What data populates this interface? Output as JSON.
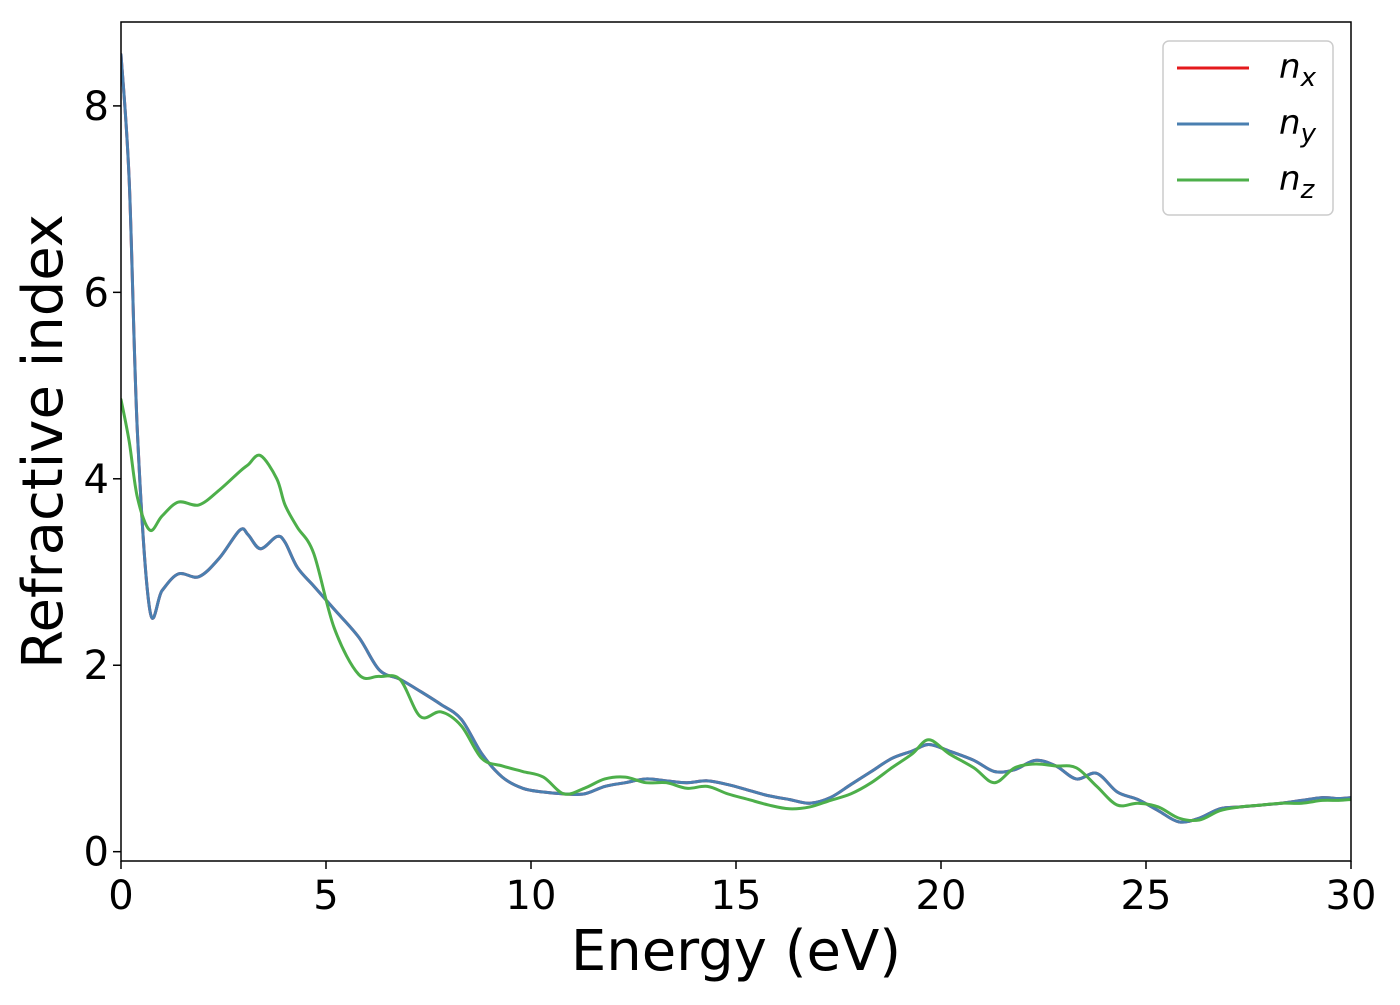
{
  "chart_data": {
    "type": "line",
    "title": "",
    "xlabel": "Energy (eV)",
    "ylabel": "Refractive index",
    "xlim": [
      0,
      30
    ],
    "ylim": [
      -0.1,
      8.9
    ],
    "xticks": [
      0,
      5,
      10,
      15,
      20,
      25,
      30
    ],
    "yticks": [
      0,
      2,
      4,
      6,
      8
    ],
    "xtick_labels": [
      "0",
      "5",
      "10",
      "15",
      "20",
      "25",
      "30"
    ],
    "ytick_labels": [
      "0",
      "2",
      "4",
      "6",
      "8"
    ],
    "grid": false,
    "legend_placement": "top-right",
    "series": [
      {
        "name": "n_x",
        "label_main": "n",
        "label_sub": "x",
        "color": "#e41a1c",
        "x": [
          0,
          0.2,
          0.4,
          0.7,
          1.0,
          1.4,
          1.9,
          2.4,
          2.9,
          3.1,
          3.4,
          3.8,
          4.0,
          4.3,
          4.7,
          5.2,
          5.8,
          6.3,
          6.8,
          7.3,
          7.8,
          8.3,
          8.8,
          9.3,
          9.8,
          10.3,
          10.8,
          11.3,
          11.8,
          12.3,
          12.8,
          13.3,
          13.8,
          14.3,
          14.8,
          15.3,
          15.8,
          16.3,
          16.8,
          17.3,
          17.8,
          18.3,
          18.8,
          19.3,
          19.7,
          20.2,
          20.8,
          21.3,
          21.8,
          22.3,
          22.8,
          23.3,
          23.8,
          24.3,
          24.8,
          25.3,
          25.8,
          26.3,
          26.8,
          27.3,
          27.8,
          28.3,
          28.8,
          29.3,
          29.7,
          30
        ],
        "y": [
          8.55,
          7.2,
          4.5,
          2.6,
          2.8,
          2.98,
          2.95,
          3.15,
          3.45,
          3.4,
          3.25,
          3.38,
          3.32,
          3.05,
          2.85,
          2.6,
          2.3,
          1.95,
          1.85,
          1.72,
          1.58,
          1.42,
          1.05,
          0.8,
          0.68,
          0.64,
          0.62,
          0.62,
          0.7,
          0.74,
          0.78,
          0.76,
          0.74,
          0.76,
          0.72,
          0.66,
          0.6,
          0.56,
          0.52,
          0.58,
          0.72,
          0.86,
          1.0,
          1.08,
          1.15,
          1.08,
          0.98,
          0.86,
          0.88,
          0.98,
          0.92,
          0.78,
          0.84,
          0.64,
          0.56,
          0.44,
          0.32,
          0.36,
          0.46,
          0.48,
          0.5,
          0.52,
          0.55,
          0.58,
          0.57,
          0.58
        ]
      },
      {
        "name": "n_y",
        "label_main": "n",
        "label_sub": "y",
        "color": "#4a7fb0",
        "x": [
          0,
          0.2,
          0.4,
          0.7,
          1.0,
          1.4,
          1.9,
          2.4,
          2.9,
          3.1,
          3.4,
          3.8,
          4.0,
          4.3,
          4.7,
          5.2,
          5.8,
          6.3,
          6.8,
          7.3,
          7.8,
          8.3,
          8.8,
          9.3,
          9.8,
          10.3,
          10.8,
          11.3,
          11.8,
          12.3,
          12.8,
          13.3,
          13.8,
          14.3,
          14.8,
          15.3,
          15.8,
          16.3,
          16.8,
          17.3,
          17.8,
          18.3,
          18.8,
          19.3,
          19.7,
          20.2,
          20.8,
          21.3,
          21.8,
          22.3,
          22.8,
          23.3,
          23.8,
          24.3,
          24.8,
          25.3,
          25.8,
          26.3,
          26.8,
          27.3,
          27.8,
          28.3,
          28.8,
          29.3,
          29.7,
          30
        ],
        "y": [
          8.55,
          7.2,
          4.5,
          2.6,
          2.8,
          2.98,
          2.95,
          3.15,
          3.45,
          3.4,
          3.25,
          3.38,
          3.32,
          3.05,
          2.85,
          2.6,
          2.3,
          1.95,
          1.85,
          1.72,
          1.58,
          1.42,
          1.05,
          0.8,
          0.68,
          0.64,
          0.62,
          0.62,
          0.7,
          0.74,
          0.78,
          0.76,
          0.74,
          0.76,
          0.72,
          0.66,
          0.6,
          0.56,
          0.52,
          0.58,
          0.72,
          0.86,
          1.0,
          1.08,
          1.15,
          1.08,
          0.98,
          0.86,
          0.88,
          0.98,
          0.92,
          0.78,
          0.84,
          0.64,
          0.56,
          0.44,
          0.32,
          0.36,
          0.46,
          0.48,
          0.5,
          0.52,
          0.55,
          0.58,
          0.57,
          0.58
        ]
      },
      {
        "name": "n_z",
        "label_main": "n",
        "label_sub": "z",
        "color": "#4daf4a",
        "x": [
          0,
          0.2,
          0.4,
          0.7,
          1.0,
          1.4,
          1.9,
          2.4,
          2.9,
          3.1,
          3.4,
          3.8,
          4.0,
          4.3,
          4.7,
          5.2,
          5.8,
          6.3,
          6.8,
          7.3,
          7.8,
          8.3,
          8.8,
          9.3,
          9.8,
          10.3,
          10.8,
          11.3,
          11.8,
          12.3,
          12.8,
          13.3,
          13.8,
          14.3,
          14.8,
          15.3,
          15.8,
          16.3,
          16.8,
          17.3,
          17.8,
          18.3,
          18.8,
          19.3,
          19.7,
          20.2,
          20.8,
          21.3,
          21.8,
          22.3,
          22.8,
          23.3,
          23.8,
          24.3,
          24.8,
          25.3,
          25.8,
          26.3,
          26.8,
          27.3,
          27.8,
          28.3,
          28.8,
          29.3,
          29.7,
          30
        ],
        "y": [
          4.85,
          4.4,
          3.8,
          3.45,
          3.6,
          3.75,
          3.72,
          3.88,
          4.08,
          4.15,
          4.25,
          4.0,
          3.72,
          3.48,
          3.2,
          2.4,
          1.9,
          1.88,
          1.85,
          1.45,
          1.5,
          1.35,
          1.0,
          0.92,
          0.86,
          0.8,
          0.62,
          0.68,
          0.78,
          0.8,
          0.74,
          0.74,
          0.68,
          0.7,
          0.62,
          0.56,
          0.5,
          0.46,
          0.48,
          0.55,
          0.62,
          0.74,
          0.9,
          1.05,
          1.2,
          1.05,
          0.9,
          0.74,
          0.9,
          0.94,
          0.92,
          0.9,
          0.7,
          0.5,
          0.52,
          0.48,
          0.36,
          0.34,
          0.44,
          0.48,
          0.5,
          0.52,
          0.52,
          0.55,
          0.55,
          0.56
        ]
      }
    ]
  }
}
